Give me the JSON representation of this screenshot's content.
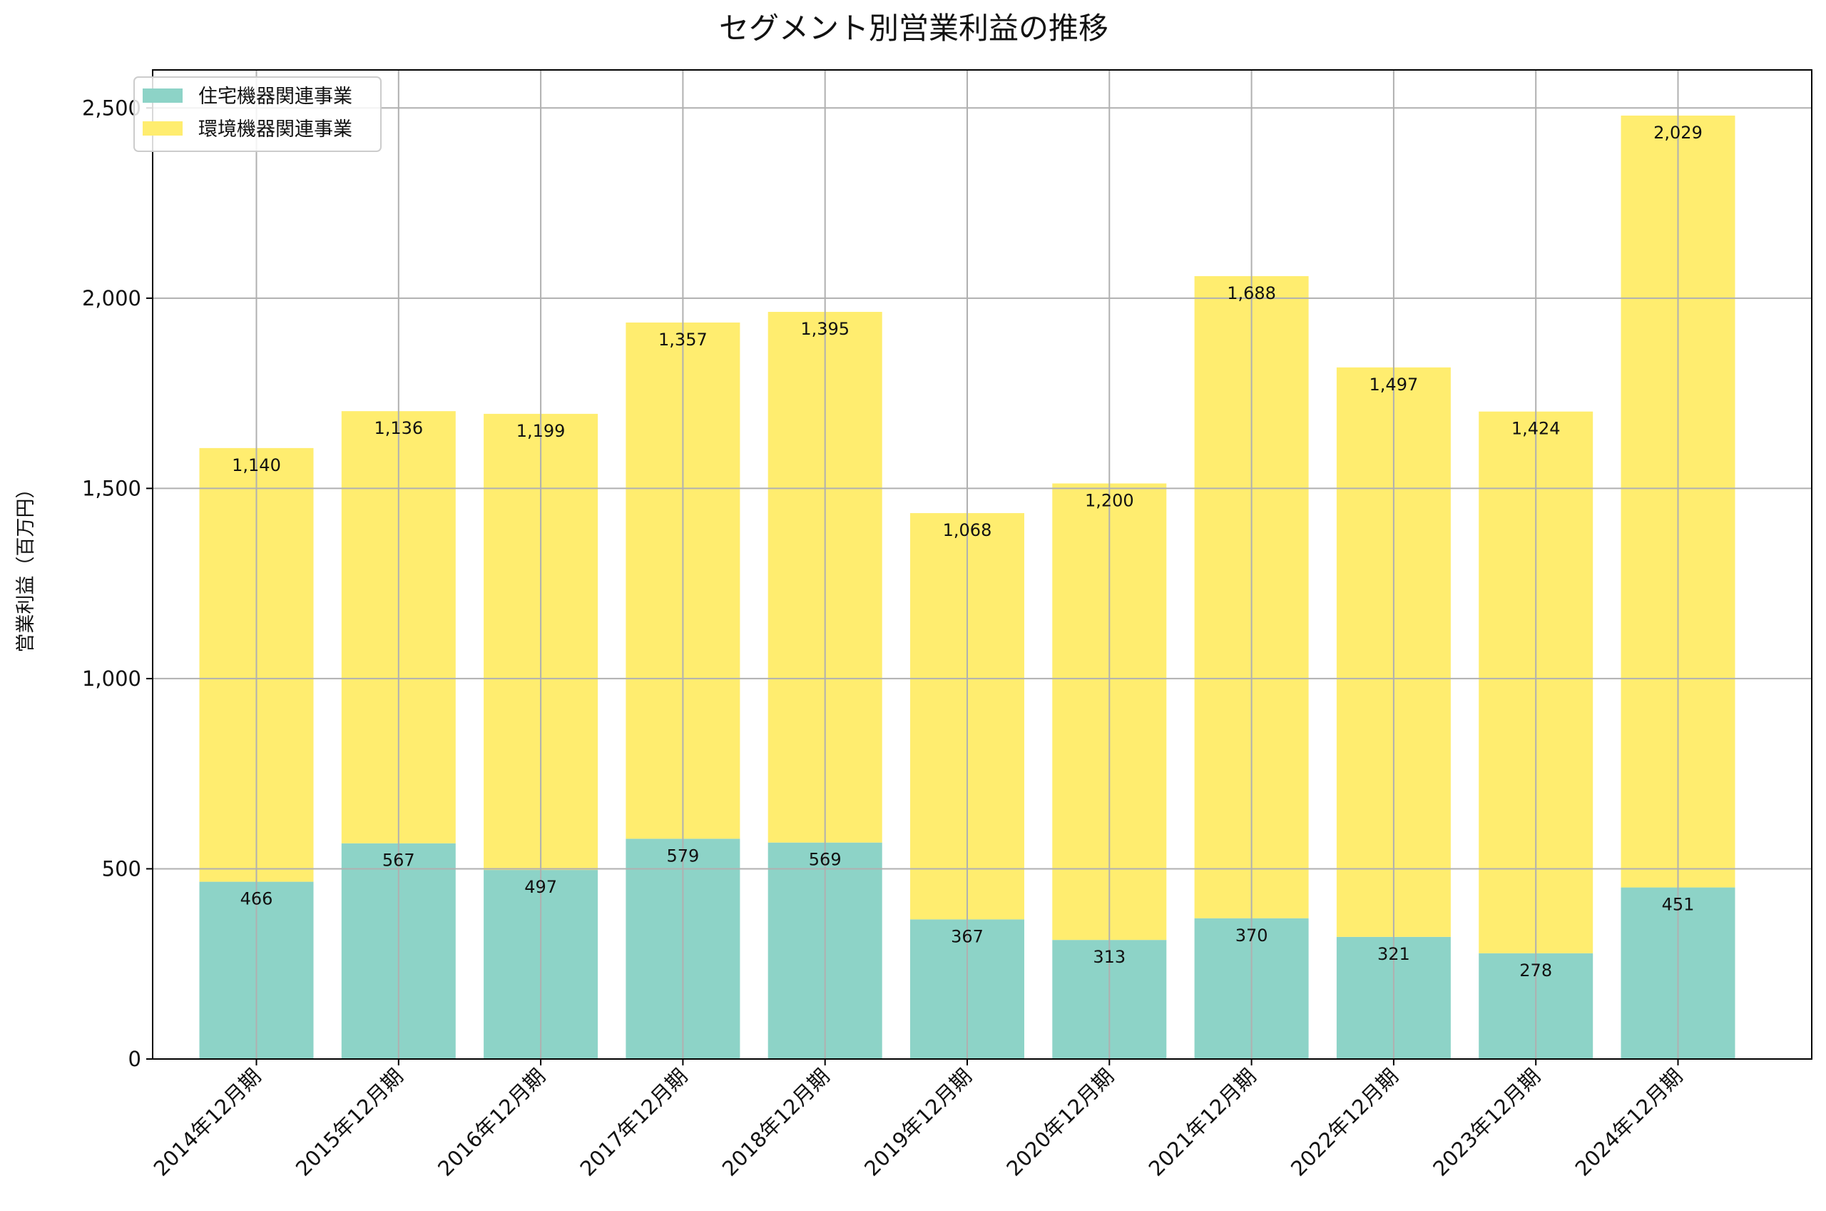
{
  "chart_data": {
    "type": "bar",
    "stacked": true,
    "title": "セグメント別営業利益の推移",
    "ylabel": "営業利益（百万円）",
    "xlabel": "",
    "ylim": [
      0,
      2600
    ],
    "yticks": [
      0,
      500,
      1000,
      1500,
      2000,
      2500
    ],
    "ytick_labels": [
      "0",
      "500",
      "1,000",
      "1,500",
      "2,000",
      "2,500"
    ],
    "grid": true,
    "legend_position": "top-left",
    "categories": [
      "2014年12月期",
      "2015年12月期",
      "2016年12月期",
      "2017年12月期",
      "2018年12月期",
      "2019年12月期",
      "2020年12月期",
      "2021年12月期",
      "2022年12月期",
      "2023年12月期",
      "2024年12月期"
    ],
    "series": [
      {
        "name": "住宅機器関連事業",
        "color": "#8dd3c7",
        "values": [
          466,
          567,
          497,
          579,
          569,
          367,
          313,
          370,
          321,
          278,
          451
        ],
        "labels": [
          "466",
          "567",
          "497",
          "579",
          "569",
          "367",
          "313",
          "370",
          "321",
          "278",
          "451"
        ]
      },
      {
        "name": "環境機器関連事業",
        "color": "#ffed6f",
        "values": [
          1140,
          1136,
          1199,
          1357,
          1395,
          1068,
          1200,
          1688,
          1497,
          1424,
          2029
        ],
        "labels": [
          "1,140",
          "1,136",
          "1,199",
          "1,357",
          "1,395",
          "1,068",
          "1,200",
          "1,688",
          "1,497",
          "1,424",
          "2,029"
        ]
      }
    ]
  }
}
